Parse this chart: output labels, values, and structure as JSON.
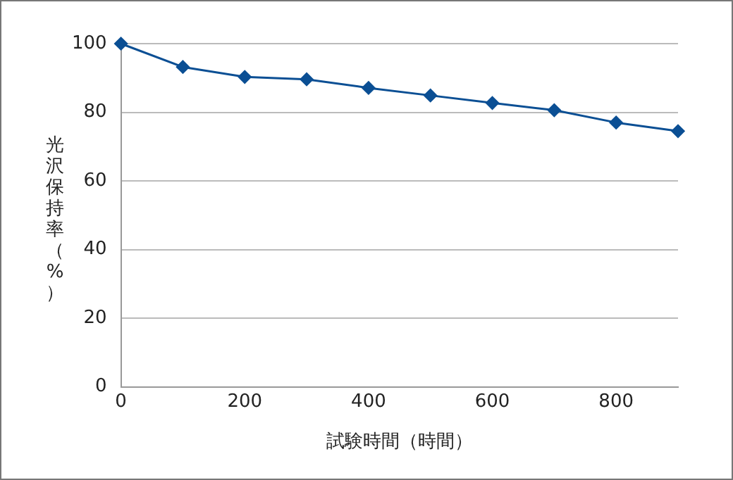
{
  "chart_data": {
    "type": "line",
    "xlabel": "試験時間（時間）",
    "ylabel": "光沢保持率（%）",
    "x": [
      0,
      100,
      200,
      300,
      400,
      500,
      600,
      700,
      800,
      900
    ],
    "series": [
      {
        "color": "#0b4f94",
        "values": [
          100,
          93.2,
          90.3,
          89.6,
          87.1,
          84.9,
          82.7,
          80.6,
          77,
          74.5
        ]
      }
    ],
    "xlim": [
      0,
      900
    ],
    "xticks": [
      0,
      200,
      400,
      600,
      800
    ],
    "ylim": [
      0,
      100
    ],
    "yticks": [
      0,
      20,
      40,
      60,
      80,
      100
    ],
    "grid": "y",
    "marker": "diamond",
    "line_style": "solid",
    "legend": false
  }
}
